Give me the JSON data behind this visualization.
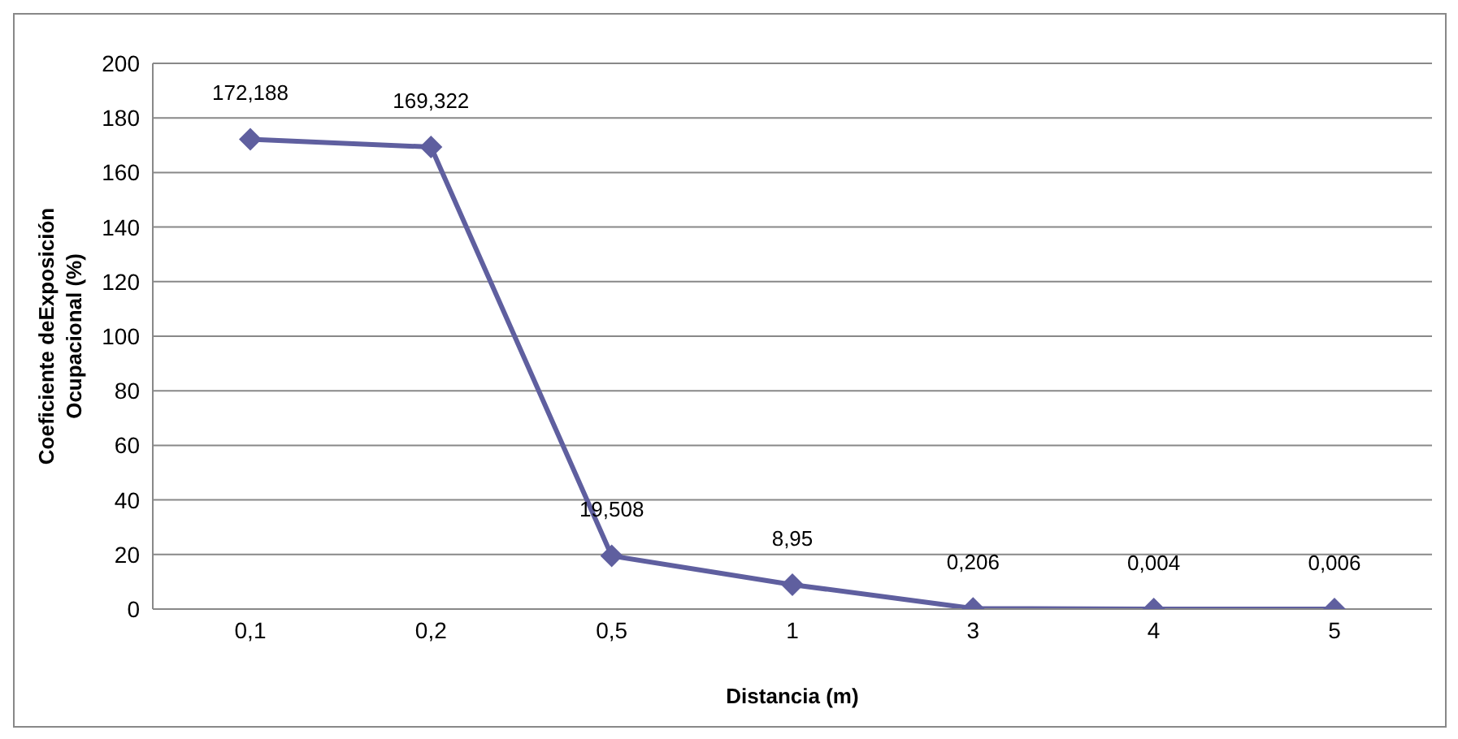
{
  "chart_data": {
    "type": "line",
    "xlabel": "Distancia (m)",
    "ylabel": "Coeficiente deExposición Ocupacional (%)",
    "categories": [
      "0,1",
      "0,2",
      "0,5",
      "1",
      "3",
      "4",
      "5"
    ],
    "series": [
      {
        "color": "#5f5f9f",
        "values": [
          172.188,
          169.322,
          19.508,
          8.95,
          0.206,
          0.004,
          0.006
        ],
        "value_labels": [
          "172,188",
          "169,322",
          "19,508",
          "8,95",
          "0,206",
          "0,004",
          "0,006"
        ]
      }
    ],
    "ylim": [
      0,
      200
    ],
    "yticks": [
      0,
      20,
      40,
      60,
      80,
      100,
      120,
      140,
      160,
      180,
      200
    ],
    "grid": "y",
    "legend": false,
    "marker": "diamond",
    "line_style": "solid"
  }
}
